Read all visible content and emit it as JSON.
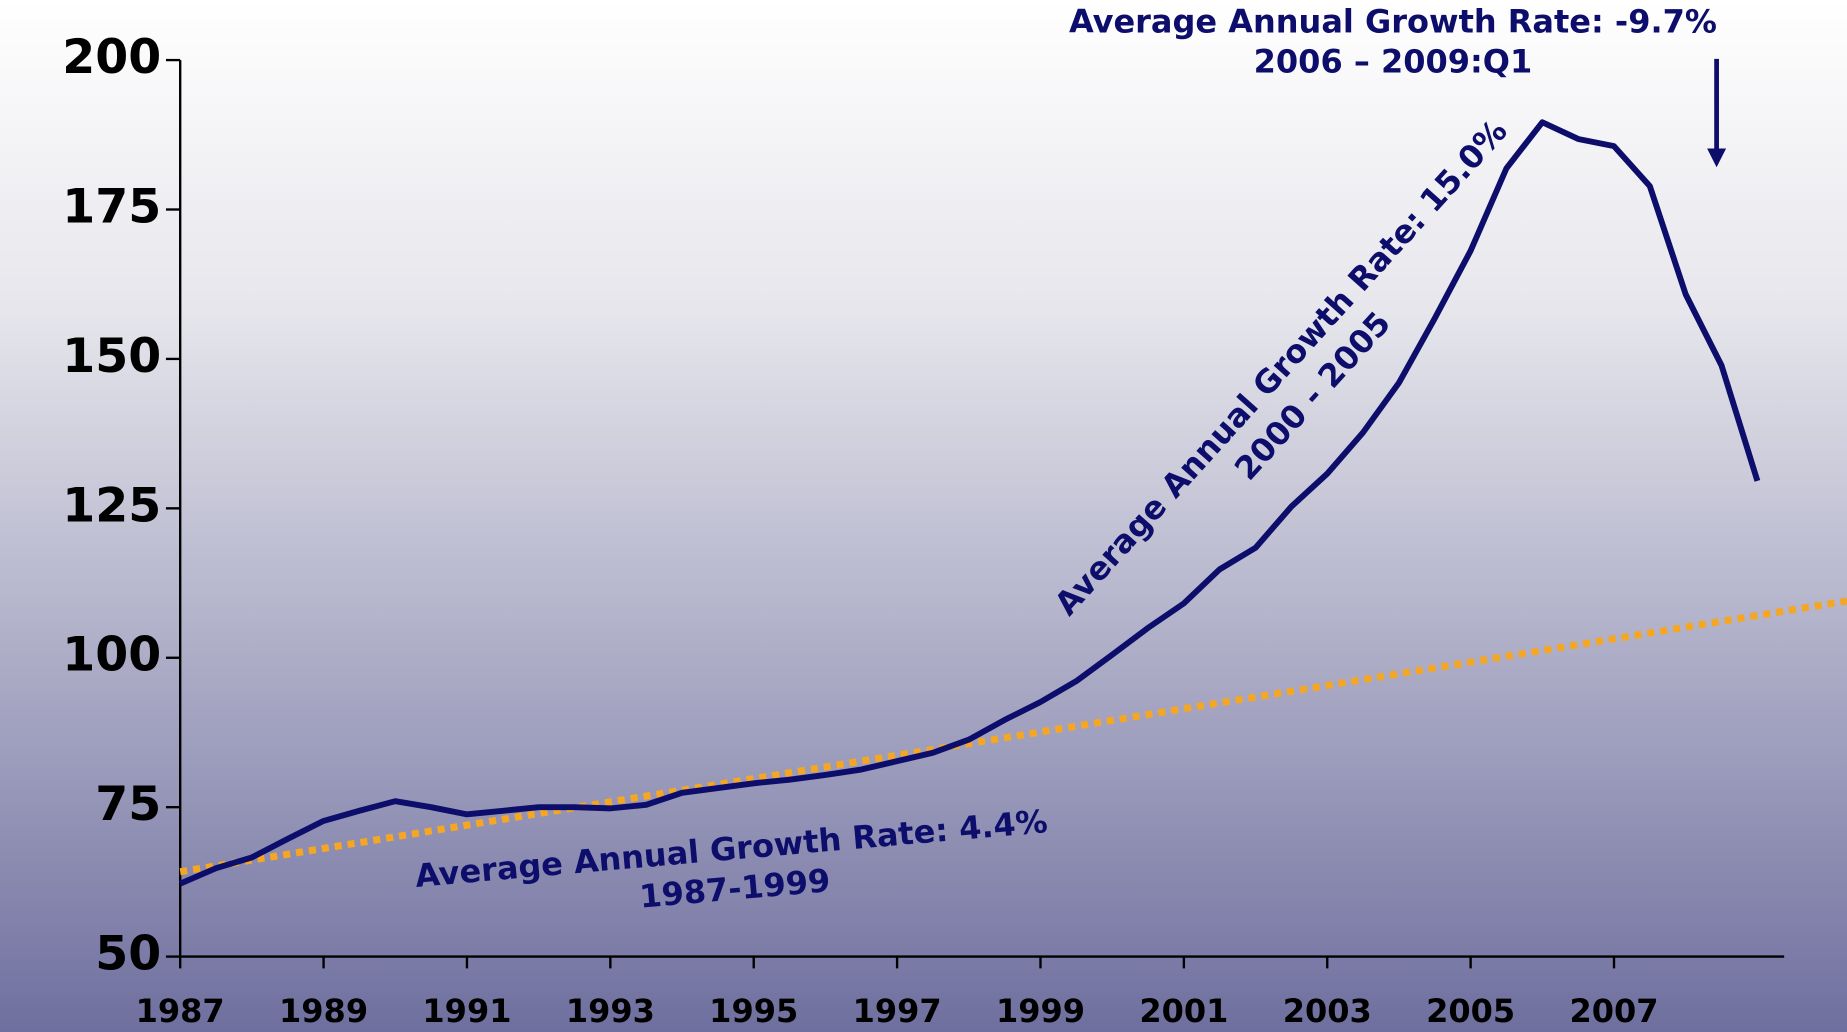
{
  "chart_data": {
    "type": "line",
    "ylim": [
      50,
      200
    ],
    "yticks": [
      50,
      75,
      100,
      125,
      150,
      175,
      200
    ],
    "xlim": [
      1987,
      2010.25
    ],
    "xticks": [
      1987,
      1989,
      1991,
      1993,
      1995,
      1997,
      1999,
      2001,
      2003,
      2005,
      2007
    ],
    "series": [
      {
        "color": "#0d0d6b",
        "x": [
          1987,
          1987.5,
          1988,
          1988.5,
          1989,
          1989.5,
          1990,
          1990.5,
          1991,
          1991.5,
          1992,
          1992.5,
          1993,
          1993.5,
          1994,
          1994.5,
          1995,
          1995.5,
          1996,
          1996.5,
          1997,
          1997.5,
          1998,
          1998.5,
          1999,
          1999.5,
          2000,
          2000.5,
          2001,
          2001.5,
          2002,
          2002.5,
          2003,
          2003.5,
          2004,
          2004.5,
          2005,
          2005.5,
          2006,
          2006.5,
          2007,
          2007.5,
          2008,
          2008.5,
          2009
        ],
        "values": [
          62.2,
          64.8,
          66.6,
          69.7,
          72.7,
          74.4,
          76.0,
          75.0,
          73.8,
          74.4,
          75.0,
          75.0,
          74.8,
          75.4,
          77.4,
          78.2,
          79.0,
          79.6,
          80.4,
          81.3,
          82.7,
          84.1,
          86.3,
          89.6,
          92.6,
          96.1,
          100.5,
          105.0,
          109.1,
          114.8,
          118.4,
          125.3,
          130.8,
          137.7,
          146.0,
          156.8,
          168.1,
          181.9,
          189.6,
          186.8,
          185.6,
          178.9,
          160.8,
          148.9,
          129.6
        ]
      },
      {
        "color": "#f5a623",
        "dash": "dotted",
        "x": [
          1987,
          2010.25
        ],
        "values": [
          64.2,
          109.5
        ]
      }
    ],
    "annotations": [
      {
        "text": [
          "Average Annual Growth Rate: -9.7%",
          "2006 – 2009:Q1"
        ]
      },
      {
        "text": [
          "Average Annual Growth Rate: 15.0%",
          "2000 - 2005"
        ]
      },
      {
        "text": [
          "Average Annual Growth Rate: 4.4%",
          "1987-1999"
        ]
      }
    ]
  }
}
